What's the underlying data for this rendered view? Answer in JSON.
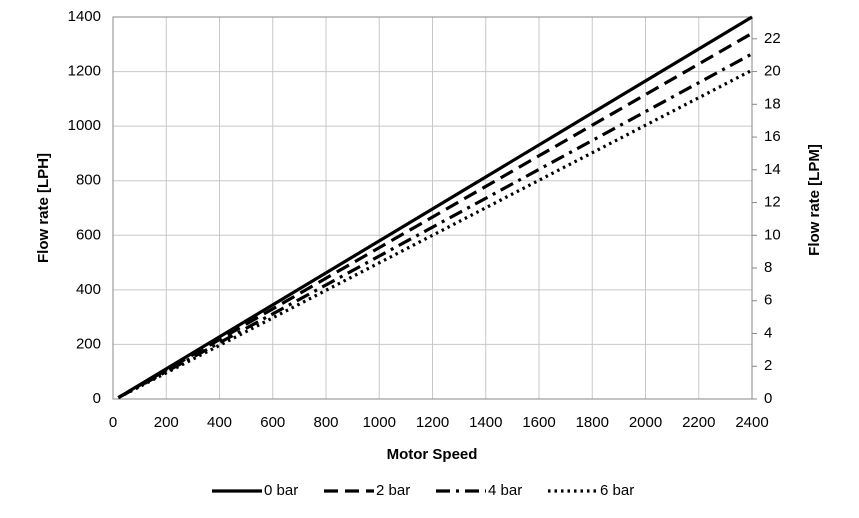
{
  "chart_data": {
    "type": "line",
    "x_label": "Motor Speed",
    "y_label": "Flow rate [LPH]",
    "y2_label": "Flow rate [LPM]",
    "x": [
      20,
      2400
    ],
    "series": [
      {
        "name": "0 bar",
        "color": "#000000",
        "linestyle": "solid",
        "values": [
          5,
          1400
        ]
      },
      {
        "name": "2 bar",
        "color": "#000000",
        "linestyle": "dashed",
        "values": [
          5,
          1340
        ]
      },
      {
        "name": "4 bar",
        "color": "#000000",
        "linestyle": "dashdot",
        "values": [
          5,
          1265
        ]
      },
      {
        "name": "6 bar",
        "color": "#000000",
        "linestyle": "dotted",
        "values": [
          5,
          1205
        ]
      }
    ],
    "xlim": [
      0,
      2400
    ],
    "xticks": [
      0,
      200,
      400,
      600,
      800,
      1000,
      1200,
      1400,
      1600,
      1800,
      2000,
      2200,
      2400
    ],
    "ylim": [
      0,
      1400
    ],
    "yticks": [
      0,
      200,
      400,
      600,
      800,
      1000,
      1200,
      1400
    ],
    "y2lim": [
      0,
      23.333
    ],
    "y2ticks": [
      0,
      2,
      4,
      6,
      8,
      10,
      12,
      14,
      16,
      18,
      20,
      22
    ],
    "grid": true,
    "legend": "bottom"
  }
}
